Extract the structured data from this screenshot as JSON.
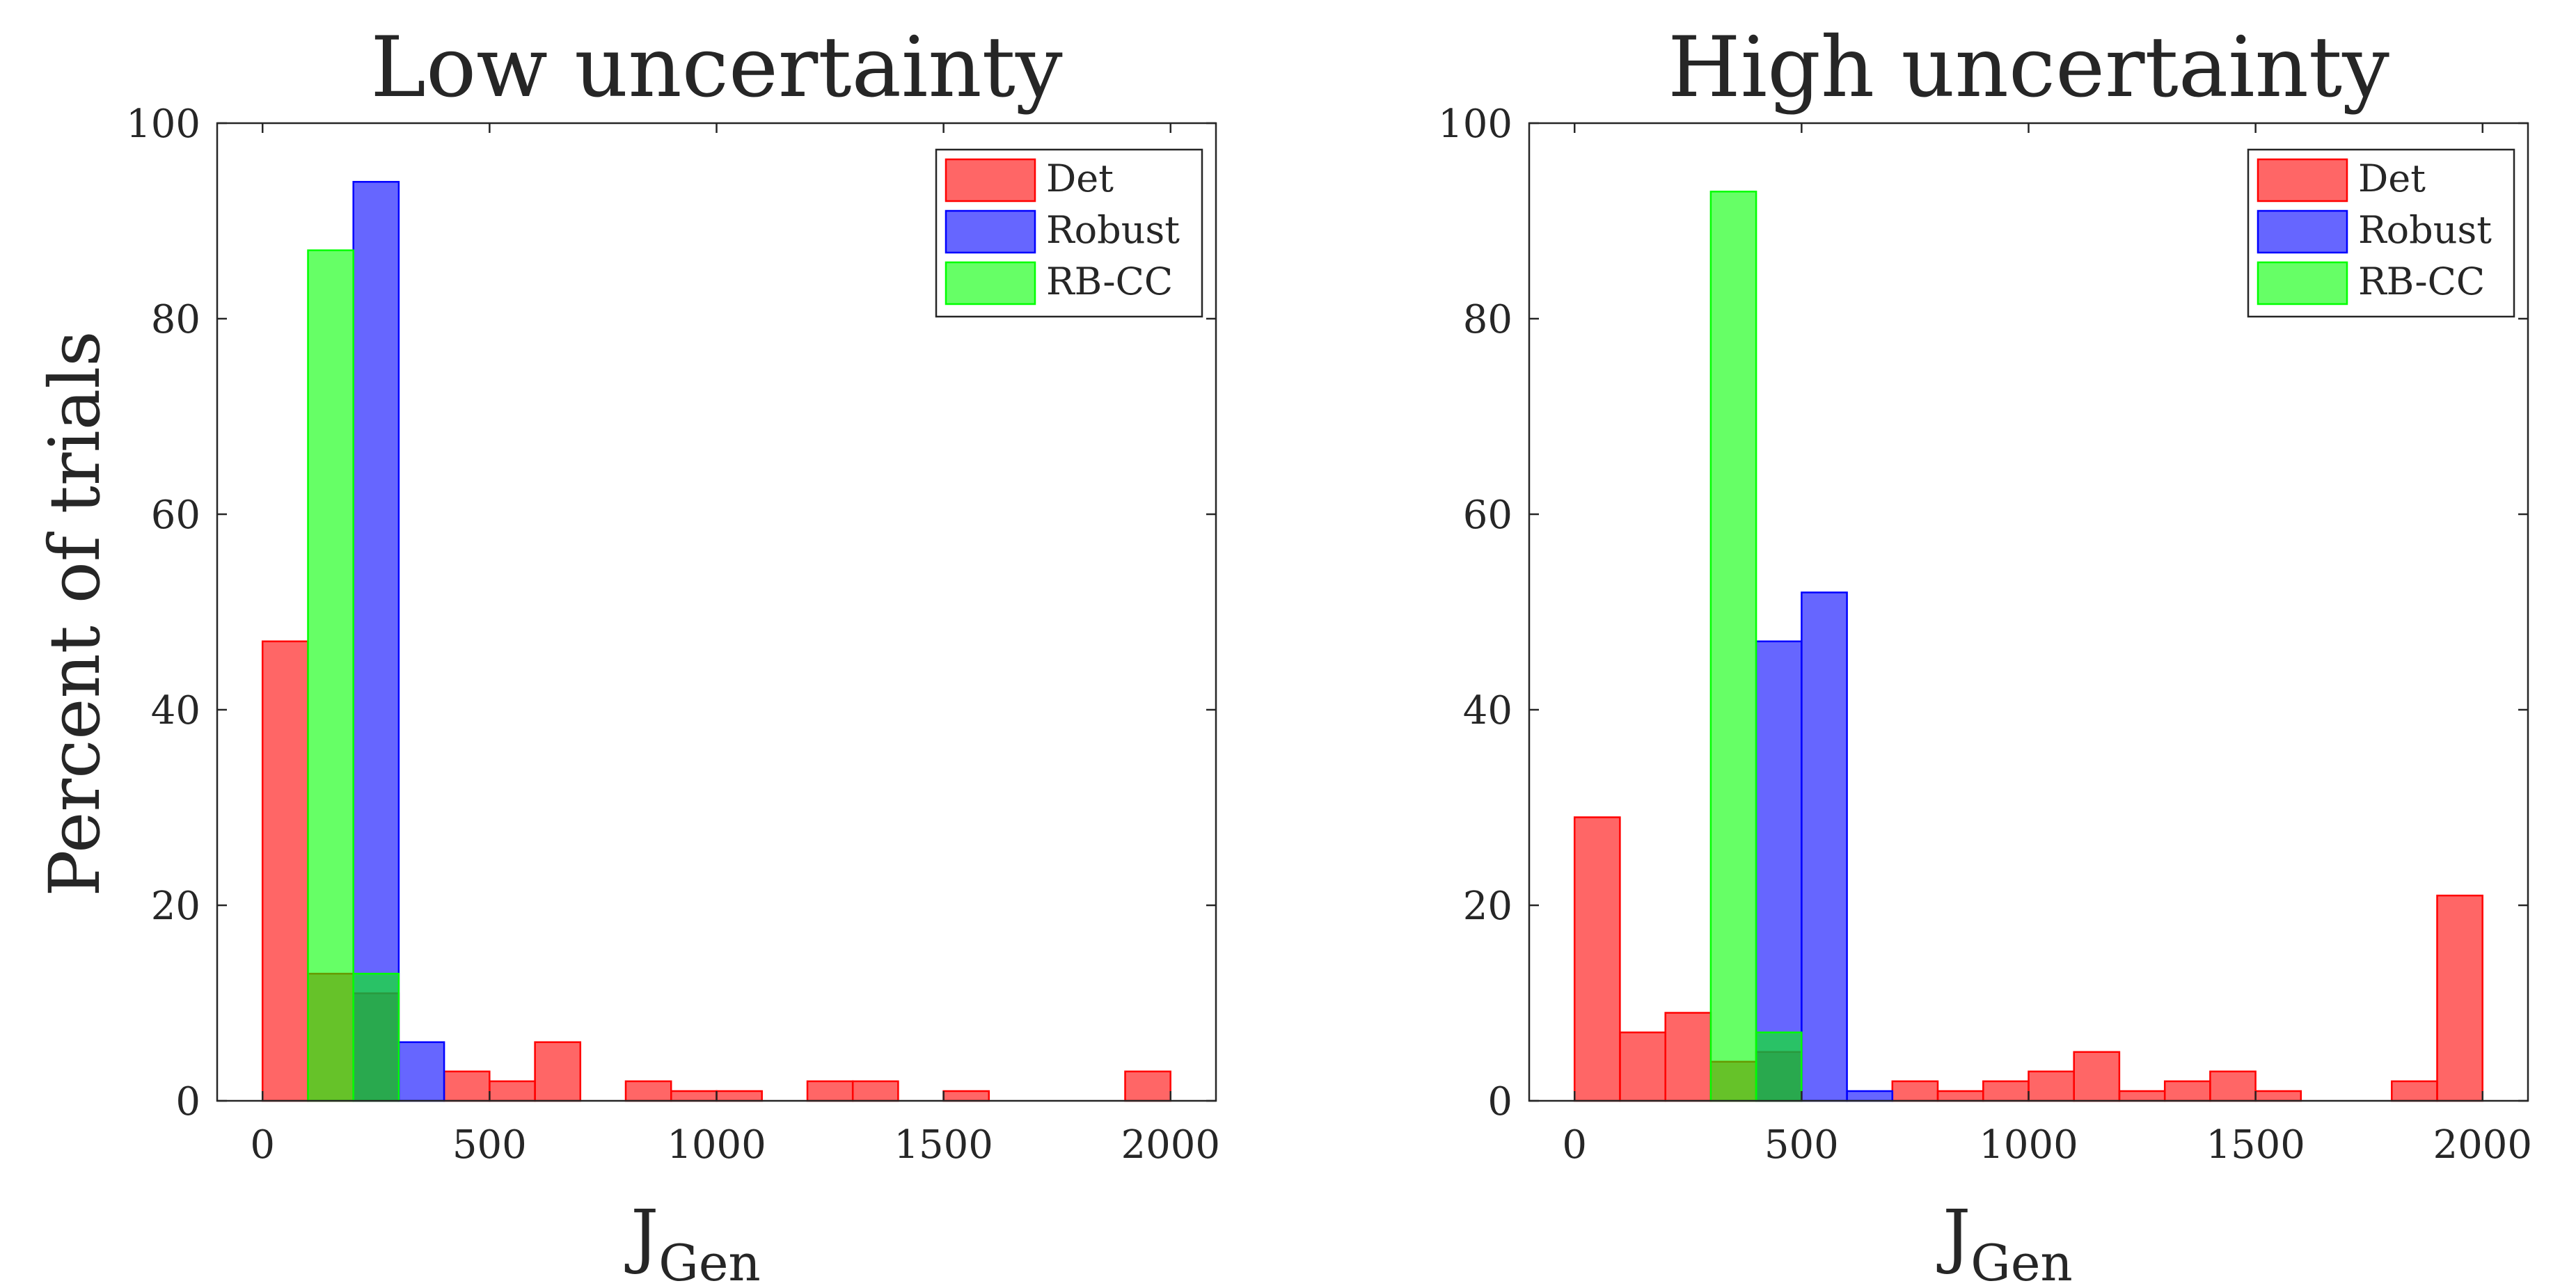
{
  "figure": {
    "ylabel": "Percent of trials",
    "xlabel_main": "J",
    "xlabel_sub": "Gen"
  },
  "colors": {
    "Det": "#ff0000",
    "Robust": "#0000ff",
    "RB-CC": "#00ff00",
    "axis": "#262626"
  },
  "chart_data": [
    {
      "type": "histogram",
      "title": "Low uncertainty",
      "xlabel": "J_Gen",
      "ylabel": "Percent of trials",
      "xlim": [
        -100,
        2100
      ],
      "ylim": [
        0,
        100
      ],
      "xticks": [
        0,
        500,
        1000,
        1500,
        2000
      ],
      "yticks": [
        0,
        20,
        40,
        60,
        80,
        100
      ],
      "bin_width": 100,
      "legend_position": "top-right",
      "series": [
        {
          "name": "Det",
          "bins": [
            [
              0,
              47
            ],
            [
              100,
              13
            ],
            [
              200,
              11
            ],
            [
              400,
              3
            ],
            [
              500,
              2
            ],
            [
              600,
              6
            ],
            [
              800,
              2
            ],
            [
              900,
              1
            ],
            [
              1000,
              1
            ],
            [
              1200,
              2
            ],
            [
              1300,
              2
            ],
            [
              1500,
              1
            ],
            [
              1900,
              3
            ]
          ]
        },
        {
          "name": "Robust",
          "bins": [
            [
              200,
              94
            ],
            [
              300,
              6
            ]
          ]
        },
        {
          "name": "RB-CC",
          "bins": [
            [
              100,
              87
            ],
            [
              200,
              13
            ]
          ]
        }
      ]
    },
    {
      "type": "histogram",
      "title": "High uncertainty",
      "xlabel": "J_Gen",
      "ylabel": "",
      "xlim": [
        -100,
        2100
      ],
      "ylim": [
        0,
        100
      ],
      "xticks": [
        0,
        500,
        1000,
        1500,
        2000
      ],
      "yticks": [
        0,
        20,
        40,
        60,
        80,
        100
      ],
      "bin_width": 100,
      "legend_position": "top-right",
      "series": [
        {
          "name": "Det",
          "bins": [
            [
              0,
              29
            ],
            [
              100,
              7
            ],
            [
              200,
              9
            ],
            [
              300,
              4
            ],
            [
              400,
              5
            ],
            [
              700,
              2
            ],
            [
              800,
              1
            ],
            [
              900,
              2
            ],
            [
              1000,
              3
            ],
            [
              1100,
              5
            ],
            [
              1200,
              1
            ],
            [
              1300,
              2
            ],
            [
              1400,
              3
            ],
            [
              1500,
              1
            ],
            [
              1800,
              2
            ],
            [
              1900,
              21
            ]
          ]
        },
        {
          "name": "Robust",
          "bins": [
            [
              400,
              47
            ],
            [
              500,
              52
            ],
            [
              600,
              1
            ]
          ]
        },
        {
          "name": "RB-CC",
          "bins": [
            [
              300,
              93
            ],
            [
              400,
              7
            ]
          ]
        }
      ]
    }
  ]
}
